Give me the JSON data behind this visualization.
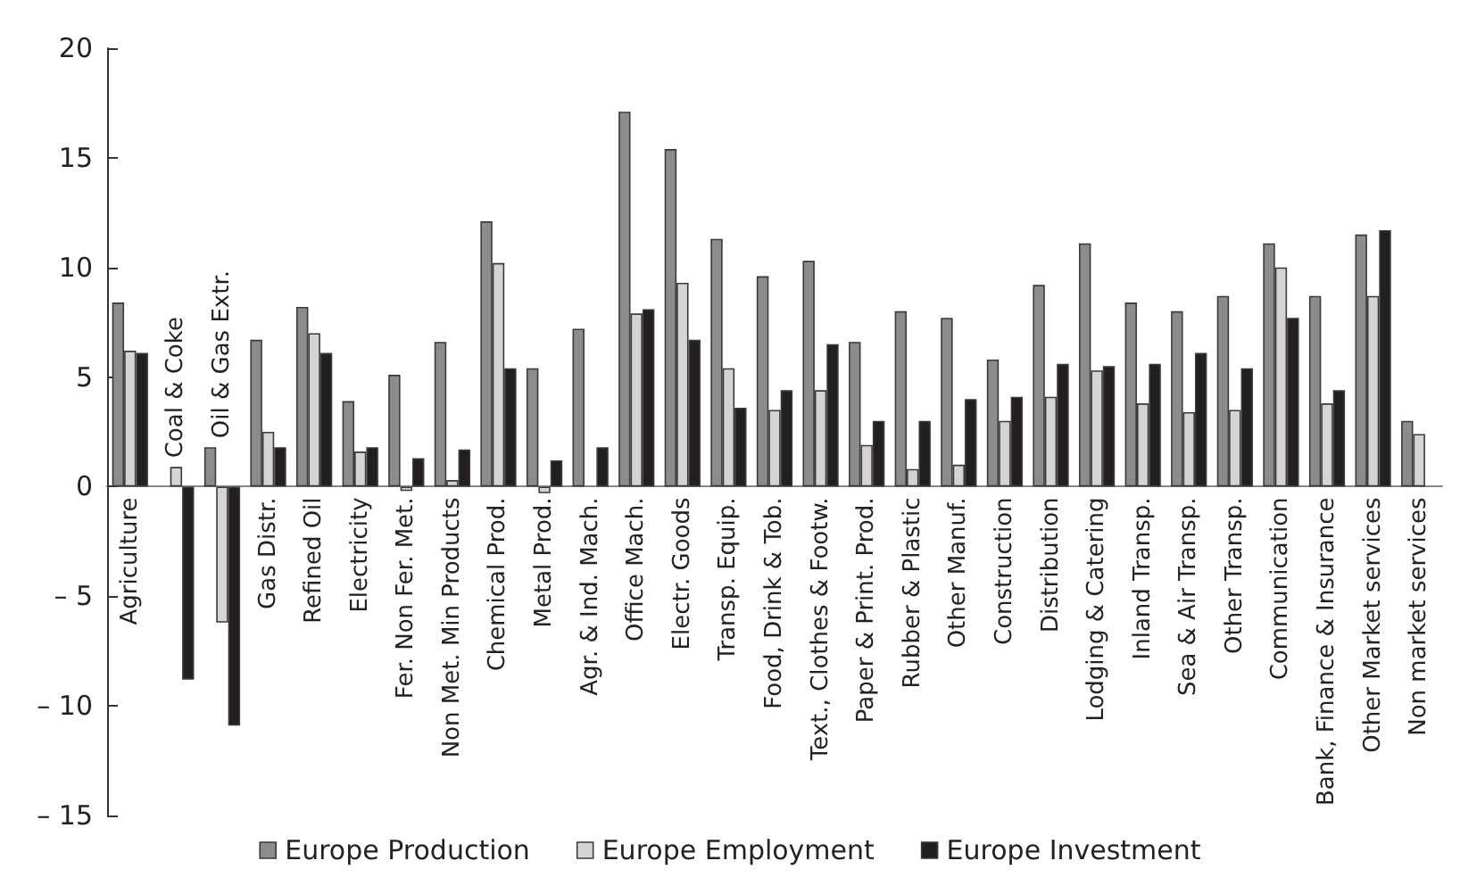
{
  "chart_data": {
    "type": "bar",
    "categories": [
      "Agriculture",
      "Coal & Coke",
      "Oil & Gas Extr.",
      "Gas Distr.",
      "Refined Oil",
      "Electricity",
      "Fer. Non Fer. Met.",
      "Non Met. Min Products",
      "Chemical Prod.",
      "Metal Prod.",
      "Agr. & Ind. Mach.",
      "Office Mach.",
      "Electr. Goods",
      "Transp. Equip.",
      "Food, Drink & Tob.",
      "Text., Clothes & Footw.",
      "Paper & Print. Prod.",
      "Rubber & Plastic",
      "Other Manuf.",
      "Construction",
      "Distribution",
      "Lodging & Catering",
      "Inland Transp.",
      "Sea & Air Transp.",
      "Other Transp.",
      "Communication",
      "Bank, Finance & Insurance",
      "Other Market services",
      "Non market services"
    ],
    "series": [
      {
        "name": "Europe Production",
        "color": "#8c8c8c",
        "values": [
          8.4,
          null,
          1.8,
          6.7,
          8.2,
          3.9,
          5.1,
          6.6,
          12.1,
          5.4,
          7.2,
          17.1,
          15.4,
          11.3,
          9.6,
          10.3,
          6.6,
          8.0,
          7.7,
          5.8,
          9.2,
          11.1,
          8.4,
          8.0,
          8.7,
          11.1,
          8.7,
          11.5,
          3.0
        ]
      },
      {
        "name": "Europe Employment",
        "color": "#d4d4d4",
        "values": [
          6.2,
          0.9,
          -6.2,
          2.5,
          7.0,
          1.6,
          -0.2,
          0.3,
          10.2,
          -0.3,
          null,
          7.9,
          9.3,
          5.4,
          3.5,
          4.4,
          1.9,
          0.8,
          1.0,
          3.0,
          4.1,
          5.3,
          3.8,
          3.4,
          3.5,
          10.0,
          3.8,
          8.7,
          2.4
        ]
      },
      {
        "name": "Europe Investment",
        "color": "#231f20",
        "values": [
          6.1,
          -8.8,
          -10.9,
          1.8,
          6.1,
          1.8,
          1.3,
          1.7,
          5.4,
          1.2,
          1.8,
          8.1,
          6.7,
          3.6,
          4.4,
          6.5,
          3.0,
          3.0,
          4.0,
          4.1,
          5.6,
          5.5,
          5.6,
          6.1,
          5.4,
          7.7,
          4.4,
          11.7,
          null
        ]
      }
    ],
    "ylim": [
      -15,
      20
    ],
    "yticks": [
      {
        "value": -15,
        "label": "– 15"
      },
      {
        "value": -10,
        "label": "– 10"
      },
      {
        "value": -5,
        "label": "– 5"
      },
      0,
      5,
      10,
      15,
      20
    ],
    "grid": false,
    "legend": "bottom"
  }
}
